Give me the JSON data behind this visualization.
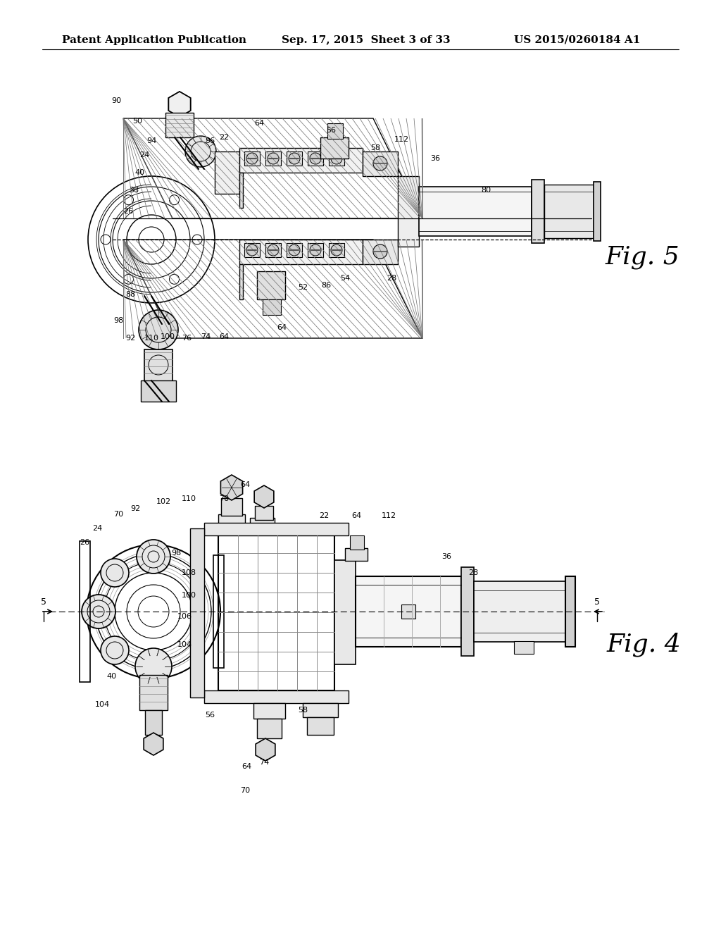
{
  "background_color": "#ffffff",
  "header_left": "Patent Application Publication",
  "header_center": "Sep. 17, 2015  Sheet 3 of 33",
  "header_right": "US 2015/0260184 A1",
  "header_fontsize": 11,
  "fig5_label": "Fig. 5",
  "fig4_label": "Fig. 4",
  "fig5_label_fontsize": 26,
  "fig4_label_fontsize": 26
}
